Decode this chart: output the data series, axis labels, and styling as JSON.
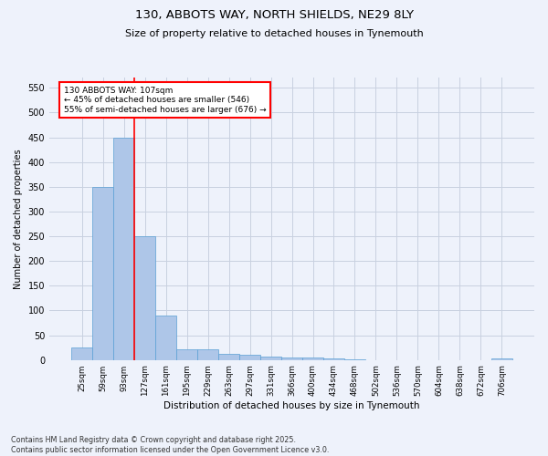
{
  "title_line1": "130, ABBOTS WAY, NORTH SHIELDS, NE29 8LY",
  "title_line2": "Size of property relative to detached houses in Tynemouth",
  "xlabel": "Distribution of detached houses by size in Tynemouth",
  "ylabel": "Number of detached properties",
  "categories": [
    "25sqm",
    "59sqm",
    "93sqm",
    "127sqm",
    "161sqm",
    "195sqm",
    "229sqm",
    "263sqm",
    "297sqm",
    "331sqm",
    "366sqm",
    "400sqm",
    "434sqm",
    "468sqm",
    "502sqm",
    "536sqm",
    "570sqm",
    "604sqm",
    "638sqm",
    "672sqm",
    "706sqm"
  ],
  "values": [
    25,
    350,
    450,
    250,
    90,
    22,
    22,
    12,
    10,
    7,
    5,
    5,
    3,
    1,
    0,
    0,
    0,
    0,
    0,
    0,
    3
  ],
  "bar_color": "#aec6e8",
  "bar_edgecolor": "#5a9fd4",
  "redline_x": 2.5,
  "annotation_text": "130 ABBOTS WAY: 107sqm\n← 45% of detached houses are smaller (546)\n55% of semi-detached houses are larger (676) →",
  "annotation_box_color": "white",
  "annotation_box_edgecolor": "red",
  "redline_color": "red",
  "ylim": [
    0,
    570
  ],
  "yticks": [
    0,
    50,
    100,
    150,
    200,
    250,
    300,
    350,
    400,
    450,
    500,
    550
  ],
  "footer_line1": "Contains HM Land Registry data © Crown copyright and database right 2025.",
  "footer_line2": "Contains public sector information licensed under the Open Government Licence v3.0.",
  "background_color": "#eef2fb",
  "grid_color": "#c8d0e0"
}
